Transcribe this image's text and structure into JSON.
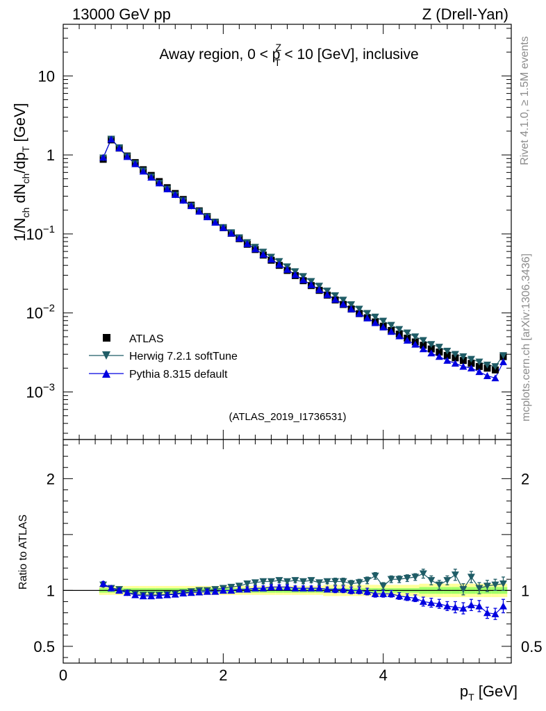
{
  "header": {
    "left": "13000 GeV pp",
    "right": "Z (Drell-Yan)"
  },
  "side": {
    "rivet": "Rivet 4.1.0, ≥ 1.5M events",
    "mcplots": "mcplots.cern.ch [arXiv:1306.3436]"
  },
  "colors": {
    "atlas": "#000000",
    "herwig": "#1f5c66",
    "pythia": "#0000e0",
    "band_inner": "#a0ff6a",
    "band_outer": "#ffff99"
  },
  "chart_data": [
    {
      "type": "scatter",
      "scale": "log",
      "title_prefix": "Away region, 0 < p",
      "title_sup": "Z",
      "title_sub": "T",
      "title_suffix": " < 10 [GeV], inclusive",
      "ylabel": "1/N_ch dN_ch/dp_T [GeV]",
      "ylabel_parts": [
        "1/N",
        "ch",
        " dN",
        "ch",
        "/dp",
        "T",
        " [GeV]"
      ],
      "ylim": [
        0.00025,
        45
      ],
      "xlim": [
        0,
        5.6
      ],
      "ytick_labels": [
        {
          "value": 10,
          "base": "10",
          "exp": ""
        },
        {
          "value": 1,
          "base": "1",
          "exp": ""
        },
        {
          "value": 0.1,
          "base": "10",
          "exp": "−1"
        },
        {
          "value": 0.01,
          "base": "10",
          "exp": "−2"
        },
        {
          "value": 0.001,
          "base": "10",
          "exp": "−3"
        }
      ],
      "watermark": "(ATLAS_2019_I1736531)",
      "x": [
        0.5,
        0.6,
        0.7,
        0.8,
        0.9,
        1.0,
        1.1,
        1.2,
        1.3,
        1.4,
        1.5,
        1.6,
        1.7,
        1.8,
        1.9,
        2.0,
        2.1,
        2.2,
        2.3,
        2.4,
        2.5,
        2.6,
        2.7,
        2.8,
        2.9,
        3.0,
        3.1,
        3.2,
        3.3,
        3.4,
        3.5,
        3.6,
        3.7,
        3.8,
        3.9,
        4.0,
        4.1,
        4.2,
        4.3,
        4.4,
        4.5,
        4.6,
        4.7,
        4.8,
        4.9,
        5.0,
        5.1,
        5.2,
        5.3,
        5.4,
        5.5
      ],
      "series": [
        {
          "name": "ATLAS",
          "marker": "square",
          "values": [
            0.88,
            1.55,
            1.22,
            0.97,
            0.8,
            0.65,
            0.55,
            0.46,
            0.385,
            0.325,
            0.273,
            0.231,
            0.196,
            0.166,
            0.141,
            0.12,
            0.102,
            0.087,
            0.074,
            0.0635,
            0.054,
            0.0465,
            0.04,
            0.0345,
            0.0297,
            0.0256,
            0.0222,
            0.0193,
            0.0168,
            0.0146,
            0.0128,
            0.0112,
            0.0098,
            0.0087,
            0.0077,
            0.0068,
            0.006,
            0.0054,
            0.0048,
            0.0043,
            0.0039,
            0.0035,
            0.0032,
            0.0029,
            0.0027,
            0.0025,
            0.0023,
            0.0021,
            0.002,
            0.0019,
            0.0028
          ]
        },
        {
          "name": "Herwig 7.2.1 softTune",
          "marker": "triangle-down",
          "values": [
            0.92,
            1.59,
            1.24,
            0.96,
            0.78,
            0.63,
            0.53,
            0.44,
            0.371,
            0.313,
            0.265,
            0.226,
            0.193,
            0.165,
            0.141,
            0.121,
            0.104,
            0.09,
            0.078,
            0.068,
            0.059,
            0.051,
            0.045,
            0.0385,
            0.0334,
            0.029,
            0.0251,
            0.0219,
            0.019,
            0.0166,
            0.0146,
            0.0128,
            0.0112,
            0.0099,
            0.0089,
            0.0079,
            0.007,
            0.0062,
            0.0056,
            0.005,
            0.0045,
            0.004,
            0.0037,
            0.0033,
            0.003,
            0.0028,
            0.0026,
            0.0024,
            0.0022,
            0.0021,
            0.0029
          ]
        },
        {
          "name": "Pythia 8.315 default",
          "marker": "triangle-up",
          "values": [
            0.93,
            1.58,
            1.22,
            0.95,
            0.77,
            0.62,
            0.52,
            0.44,
            0.37,
            0.314,
            0.266,
            0.227,
            0.193,
            0.164,
            0.14,
            0.12,
            0.102,
            0.088,
            0.075,
            0.0645,
            0.055,
            0.0478,
            0.041,
            0.0354,
            0.0304,
            0.0262,
            0.0227,
            0.0197,
            0.017,
            0.0148,
            0.0129,
            0.0112,
            0.0098,
            0.0086,
            0.0075,
            0.0066,
            0.0058,
            0.0051,
            0.0045,
            0.004,
            0.0035,
            0.0031,
            0.0028,
            0.0025,
            0.0023,
            0.0021,
            0.002,
            0.0018,
            0.0016,
            0.0015,
            0.0024
          ]
        }
      ]
    },
    {
      "type": "scatter",
      "ylabel": "Ratio to ATLAS",
      "xlabel": "p_T [GeV]",
      "xlabel_parts": [
        "p",
        "T",
        " [GeV]"
      ],
      "ylim": [
        0.35,
        2.35
      ],
      "xlim": [
        0,
        5.6
      ],
      "xtick_labels": [
        "0",
        "2",
        "4"
      ],
      "ytick_labels": [
        "2",
        "1",
        "0.5"
      ],
      "reference": 1.0,
      "x": [
        0.5,
        0.6,
        0.7,
        0.8,
        0.9,
        1.0,
        1.1,
        1.2,
        1.3,
        1.4,
        1.5,
        1.6,
        1.7,
        1.8,
        1.9,
        2.0,
        2.1,
        2.2,
        2.3,
        2.4,
        2.5,
        2.6,
        2.7,
        2.8,
        2.9,
        3.0,
        3.1,
        3.2,
        3.3,
        3.4,
        3.5,
        3.6,
        3.7,
        3.8,
        3.9,
        4.0,
        4.1,
        4.2,
        4.3,
        4.4,
        4.5,
        4.6,
        4.7,
        4.8,
        4.9,
        5.0,
        5.1,
        5.2,
        5.3,
        5.4,
        5.5
      ],
      "band_inner": [
        0.02,
        0.02,
        0.02,
        0.02,
        0.02,
        0.02,
        0.02,
        0.02,
        0.02,
        0.02,
        0.02,
        0.02,
        0.02,
        0.02,
        0.02,
        0.02,
        0.02,
        0.02,
        0.02,
        0.02,
        0.02,
        0.02,
        0.02,
        0.02,
        0.02,
        0.02,
        0.02,
        0.02,
        0.02,
        0.02,
        0.02,
        0.02,
        0.02,
        0.02,
        0.02,
        0.02,
        0.02,
        0.02,
        0.02,
        0.02,
        0.03,
        0.03,
        0.03,
        0.03,
        0.03,
        0.03,
        0.03,
        0.03,
        0.03,
        0.03,
        0.03
      ],
      "band_outer": [
        0.04,
        0.04,
        0.04,
        0.04,
        0.04,
        0.04,
        0.04,
        0.04,
        0.04,
        0.04,
        0.04,
        0.04,
        0.04,
        0.04,
        0.04,
        0.04,
        0.04,
        0.04,
        0.04,
        0.04,
        0.04,
        0.04,
        0.04,
        0.04,
        0.04,
        0.04,
        0.04,
        0.04,
        0.05,
        0.05,
        0.05,
        0.05,
        0.05,
        0.05,
        0.05,
        0.05,
        0.05,
        0.05,
        0.05,
        0.05,
        0.06,
        0.06,
        0.06,
        0.06,
        0.06,
        0.06,
        0.06,
        0.06,
        0.06,
        0.06,
        0.06
      ],
      "series": [
        {
          "name": "Herwig 7.2.1 softTune",
          "marker": "triangle-down",
          "values": [
            1.05,
            1.02,
            1.01,
            0.98,
            0.97,
            0.96,
            0.96,
            0.96,
            0.965,
            0.97,
            0.98,
            0.99,
            1.0,
            1.0,
            1.01,
            1.02,
            1.03,
            1.04,
            1.06,
            1.07,
            1.08,
            1.08,
            1.09,
            1.08,
            1.09,
            1.08,
            1.09,
            1.07,
            1.08,
            1.08,
            1.08,
            1.06,
            1.07,
            1.09,
            1.13,
            1.04,
            1.1,
            1.1,
            1.11,
            1.12,
            1.15,
            1.09,
            1.05,
            1.09,
            1.14,
            1.01,
            1.12,
            1.02,
            1.04,
            1.05,
            1.06
          ],
          "errors": [
            0.02,
            0.02,
            0.02,
            0.02,
            0.02,
            0.02,
            0.02,
            0.02,
            0.02,
            0.02,
            0.02,
            0.02,
            0.02,
            0.02,
            0.02,
            0.02,
            0.02,
            0.02,
            0.02,
            0.02,
            0.02,
            0.02,
            0.02,
            0.02,
            0.02,
            0.02,
            0.02,
            0.02,
            0.02,
            0.03,
            0.03,
            0.03,
            0.03,
            0.03,
            0.03,
            0.03,
            0.03,
            0.03,
            0.03,
            0.03,
            0.04,
            0.04,
            0.04,
            0.04,
            0.05,
            0.05,
            0.05,
            0.05,
            0.05,
            0.05,
            0.06
          ]
        },
        {
          "name": "Pythia 8.315 default",
          "marker": "triangle-up",
          "values": [
            1.06,
            1.02,
            1.0,
            0.98,
            0.96,
            0.95,
            0.95,
            0.955,
            0.96,
            0.965,
            0.975,
            0.98,
            0.985,
            0.99,
            0.99,
            1.0,
            1.0,
            1.01,
            1.01,
            1.02,
            1.02,
            1.03,
            1.03,
            1.03,
            1.02,
            1.02,
            1.02,
            1.02,
            1.01,
            1.01,
            1.01,
            1.0,
            1.0,
            0.99,
            0.97,
            0.97,
            0.97,
            0.95,
            0.94,
            0.93,
            0.9,
            0.89,
            0.88,
            0.86,
            0.85,
            0.84,
            0.87,
            0.86,
            0.8,
            0.79,
            0.86
          ],
          "errors": [
            0.02,
            0.02,
            0.02,
            0.02,
            0.02,
            0.02,
            0.02,
            0.02,
            0.02,
            0.02,
            0.02,
            0.02,
            0.02,
            0.02,
            0.02,
            0.02,
            0.02,
            0.02,
            0.02,
            0.02,
            0.02,
            0.02,
            0.02,
            0.02,
            0.02,
            0.02,
            0.02,
            0.02,
            0.02,
            0.03,
            0.03,
            0.03,
            0.03,
            0.03,
            0.03,
            0.03,
            0.03,
            0.03,
            0.03,
            0.03,
            0.04,
            0.04,
            0.04,
            0.04,
            0.05,
            0.05,
            0.05,
            0.05,
            0.05,
            0.05,
            0.06
          ]
        }
      ]
    }
  ]
}
